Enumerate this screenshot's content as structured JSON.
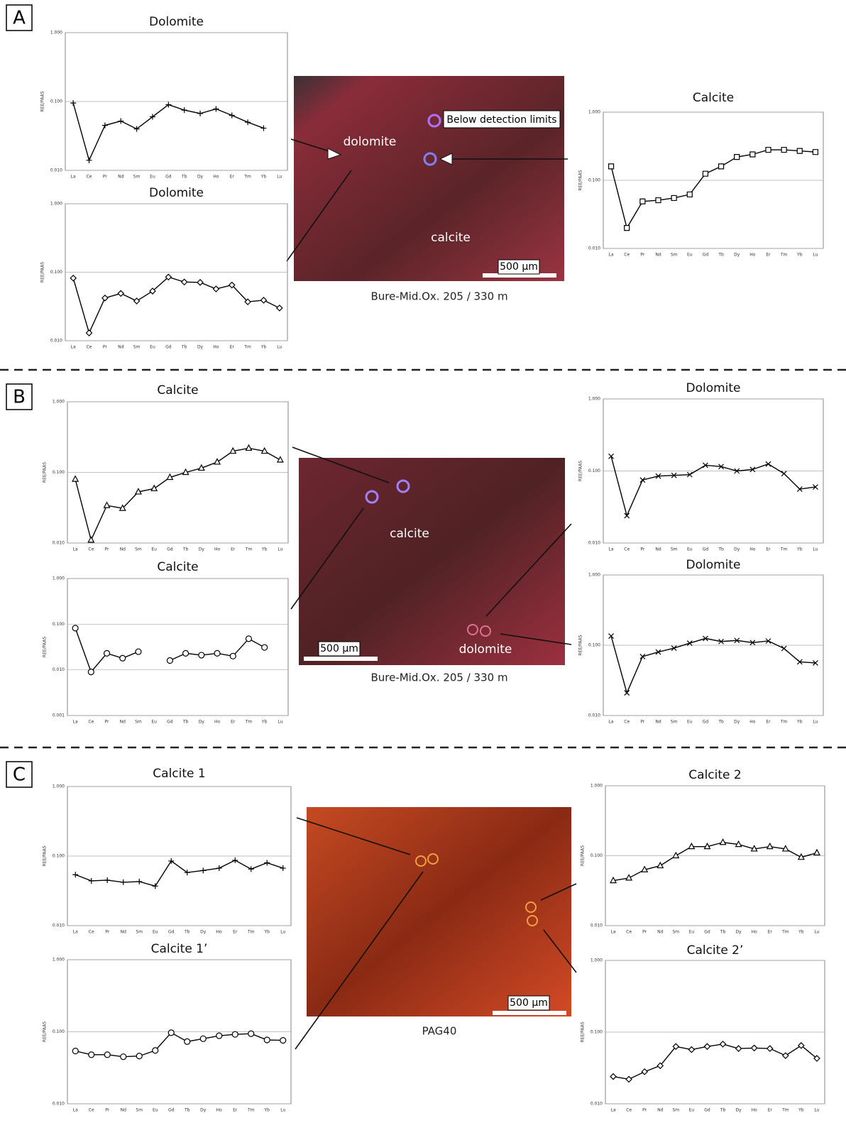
{
  "panels": [
    {
      "letter": "A",
      "labels": [
        "Below detection limits",
        "dolomite",
        "calcite"
      ],
      "scale_bar": "500 µm",
      "caption": "Bure-Mid.Ox. 205 / 330 m"
    },
    {
      "letter": "B",
      "labels": [
        "calcite",
        "dolomite"
      ],
      "scale_bar": "500 µm",
      "caption": "Bure-Mid.Ox. 205 / 330 m"
    },
    {
      "letter": "C",
      "labels": [],
      "scale_bar": "500 µm",
      "caption": "PAG40"
    }
  ],
  "chart_data": [
    {
      "type": "line",
      "title": "Dolomite",
      "y_label": "REE/PAAS",
      "log_scale": true,
      "marker": "plus",
      "color": "#000000",
      "categories": [
        "La",
        "Ce",
        "Pr",
        "Nd",
        "Sm",
        "Eu",
        "Gd",
        "Tb",
        "Dy",
        "Ho",
        "Er",
        "Tm",
        "Yb",
        "Lu"
      ],
      "values": [
        0.095,
        0.014,
        0.045,
        0.052,
        0.04,
        0.06,
        0.09,
        0.075,
        0.067,
        0.078,
        0.063,
        0.05,
        0.041,
        null
      ],
      "ylim": [
        0.01,
        1
      ],
      "yticks": [
        {
          "value": 1,
          "label": "1.000"
        },
        {
          "value": 0.1,
          "label": "0.100"
        },
        {
          "value": 0.01,
          "label": "0.010"
        }
      ],
      "grid": true
    },
    {
      "type": "line",
      "title": "Dolomite",
      "y_label": "REE/PAAS",
      "log_scale": true,
      "marker": "diamond",
      "color": "#000000",
      "categories": [
        "La",
        "Ce",
        "Pr",
        "Nd",
        "Sm",
        "Eu",
        "Gd",
        "Tb",
        "Dy",
        "Ho",
        "Er",
        "Tm",
        "Yb",
        "Lu"
      ],
      "values": [
        0.082,
        0.013,
        0.042,
        0.049,
        0.038,
        0.053,
        0.085,
        0.072,
        0.071,
        0.057,
        0.065,
        0.037,
        0.039,
        0.03
      ],
      "ylim": [
        0.01,
        1
      ],
      "yticks": [
        {
          "value": 1,
          "label": "1.000"
        },
        {
          "value": 0.1,
          "label": "0.100"
        },
        {
          "value": 0.01,
          "label": "0.010"
        }
      ],
      "grid": true
    },
    {
      "type": "line",
      "title": "Calcite",
      "y_label": "REE/PAAS",
      "log_scale": true,
      "marker": "square",
      "color": "#000000",
      "categories": [
        "La",
        "Ce",
        "Pr",
        "Nd",
        "Sm",
        "Eu",
        "Gd",
        "Tb",
        "Dy",
        "Ho",
        "Er",
        "Tm",
        "Yb",
        "Lu"
      ],
      "values": [
        0.16,
        0.02,
        0.049,
        0.051,
        0.055,
        0.062,
        0.125,
        0.16,
        0.22,
        0.24,
        0.28,
        0.28,
        0.27,
        0.26
      ],
      "ylim": [
        0.01,
        1
      ],
      "yticks": [
        {
          "value": 1,
          "label": "1.000"
        },
        {
          "value": 0.1,
          "label": "0.100"
        },
        {
          "value": 0.01,
          "label": "0.010"
        }
      ],
      "grid": true
    },
    {
      "type": "line",
      "title": "Calcite",
      "y_label": "REE/PAAS",
      "log_scale": true,
      "marker": "triangle",
      "color": "#000000",
      "categories": [
        "La",
        "Ce",
        "Pr",
        "Nd",
        "Sm",
        "Eu",
        "Gd",
        "Tb",
        "Dy",
        "Ho",
        "Er",
        "Tm",
        "Yb",
        "Lu"
      ],
      "values": [
        0.08,
        0.011,
        0.034,
        0.031,
        0.053,
        0.059,
        0.085,
        0.1,
        0.115,
        0.14,
        0.2,
        0.22,
        0.2,
        0.15
      ],
      "ylim": [
        0.01,
        1
      ],
      "yticks": [
        {
          "value": 1,
          "label": "1.000"
        },
        {
          "value": 0.1,
          "label": "0.100"
        },
        {
          "value": 0.01,
          "label": "0.010"
        }
      ],
      "grid": true
    },
    {
      "type": "line",
      "title": "Calcite",
      "y_label": "REE/PAAS",
      "log_scale": true,
      "marker": "circle",
      "color": "#000000",
      "categories": [
        "La",
        "Ce",
        "Pr",
        "Nd",
        "Sm",
        "Eu",
        "Gd",
        "Tb",
        "Dy",
        "Ho",
        "Er",
        "Tm",
        "Yb",
        "Lu"
      ],
      "values": [
        0.082,
        0.009,
        0.023,
        0.018,
        0.025,
        null,
        0.016,
        0.023,
        0.021,
        0.023,
        0.02,
        0.048,
        0.031,
        null
      ],
      "ylim": [
        0.001,
        1
      ],
      "yticks": [
        {
          "value": 1,
          "label": "1.000"
        },
        {
          "value": 0.1,
          "label": "0.100"
        },
        {
          "value": 0.01,
          "label": "0.010"
        },
        {
          "value": 0.001,
          "label": "0.001"
        }
      ],
      "grid": true
    },
    {
      "type": "line",
      "title": "Dolomite",
      "y_label": "REE/PAAS",
      "log_scale": true,
      "marker": "x",
      "color": "#000000",
      "categories": [
        "La",
        "Ce",
        "Pr",
        "Nd",
        "Sm",
        "Eu",
        "Gd",
        "Tb",
        "Dy",
        "Ho",
        "Er",
        "Tm",
        "Yb",
        "Lu"
      ],
      "values": [
        0.16,
        0.024,
        0.075,
        0.085,
        0.087,
        0.089,
        0.12,
        0.115,
        0.1,
        0.105,
        0.125,
        0.092,
        0.056,
        0.06
      ],
      "ylim": [
        0.01,
        1
      ],
      "yticks": [
        {
          "value": 1,
          "label": "1.000"
        },
        {
          "value": 0.1,
          "label": "0.100"
        },
        {
          "value": 0.01,
          "label": "0.010"
        }
      ],
      "grid": true
    },
    {
      "type": "line",
      "title": "Dolomite",
      "y_label": "REE/PAAS",
      "log_scale": true,
      "marker": "x",
      "color": "#000000",
      "categories": [
        "La",
        "Ce",
        "Pr",
        "Nd",
        "Sm",
        "Eu",
        "Gd",
        "Tb",
        "Dy",
        "Ho",
        "Er",
        "Tm",
        "Yb",
        "Lu"
      ],
      "values": [
        0.135,
        0.021,
        0.069,
        0.08,
        0.091,
        0.107,
        0.125,
        0.113,
        0.117,
        0.109,
        0.115,
        0.09,
        0.058,
        0.056
      ],
      "ylim": [
        0.01,
        1
      ],
      "yticks": [
        {
          "value": 1,
          "label": "1.000"
        },
        {
          "value": 0.1,
          "label": "0.100"
        },
        {
          "value": 0.01,
          "label": "0.010"
        }
      ],
      "grid": true
    },
    {
      "type": "line",
      "title": "Calcite 1",
      "y_label": "REE/PAAS",
      "log_scale": true,
      "marker": "plus",
      "color": "#000000",
      "categories": [
        "La",
        "Ce",
        "Pr",
        "Nd",
        "Sm",
        "Eu",
        "Gd",
        "Tb",
        "Dy",
        "Ho",
        "Er",
        "Tm",
        "Yb",
        "Lu"
      ],
      "values": [
        0.054,
        0.044,
        0.045,
        0.042,
        0.043,
        0.037,
        0.085,
        0.058,
        0.062,
        0.067,
        0.087,
        0.065,
        0.08,
        0.067
      ],
      "ylim": [
        0.01,
        1
      ],
      "yticks": [
        {
          "value": 1,
          "label": "1.000"
        },
        {
          "value": 0.1,
          "label": "0.100"
        },
        {
          "value": 0.01,
          "label": "0.010"
        }
      ],
      "grid": true
    },
    {
      "type": "line",
      "title": "Calcite 1’",
      "y_label": "REE/PAAS",
      "log_scale": true,
      "marker": "circle",
      "color": "#000000",
      "categories": [
        "La",
        "Ce",
        "Pr",
        "Nd",
        "Sm",
        "Eu",
        "Gd",
        "Tb",
        "Dy",
        "Ho",
        "Er",
        "Tm",
        "Yb",
        "Lu"
      ],
      "values": [
        0.054,
        0.048,
        0.048,
        0.045,
        0.046,
        0.055,
        0.097,
        0.073,
        0.08,
        0.088,
        0.092,
        0.094,
        0.077,
        0.076
      ],
      "ylim": [
        0.01,
        1
      ],
      "yticks": [
        {
          "value": 1,
          "label": "1.000"
        },
        {
          "value": 0.1,
          "label": "0.100"
        },
        {
          "value": 0.01,
          "label": "0.010"
        }
      ],
      "grid": true
    },
    {
      "type": "line",
      "title": "Calcite 2",
      "y_label": "REE/PAAS",
      "log_scale": true,
      "marker": "triangle",
      "color": "#000000",
      "categories": [
        "La",
        "Ce",
        "Pr",
        "Nd",
        "Sm",
        "Eu",
        "Gd",
        "Tb",
        "Dy",
        "Ho",
        "Er",
        "Tm",
        "Yb",
        "Lu"
      ],
      "values": [
        0.044,
        0.048,
        0.063,
        0.072,
        0.1,
        0.135,
        0.135,
        0.155,
        0.145,
        0.125,
        0.135,
        0.125,
        0.095,
        0.11
      ],
      "ylim": [
        0.01,
        1
      ],
      "yticks": [
        {
          "value": 1,
          "label": "1.000"
        },
        {
          "value": 0.1,
          "label": "0.100"
        },
        {
          "value": 0.01,
          "label": "0.010"
        }
      ],
      "grid": true
    },
    {
      "type": "line",
      "title": "Calcite 2’",
      "y_label": "REE/PAAS",
      "log_scale": true,
      "marker": "diamond",
      "color": "#000000",
      "categories": [
        "La",
        "Ce",
        "Pr",
        "Nd",
        "Sm",
        "Eu",
        "Gd",
        "Tb",
        "Dy",
        "Ho",
        "Er",
        "Tm",
        "Yb",
        "Lu"
      ],
      "values": [
        0.024,
        0.022,
        0.028,
        0.034,
        0.063,
        0.057,
        0.063,
        0.068,
        0.059,
        0.06,
        0.059,
        0.047,
        0.065,
        0.043
      ],
      "ylim": [
        0.01,
        1
      ],
      "yticks": [
        {
          "value": 1,
          "label": "1.000"
        },
        {
          "value": 0.1,
          "label": "0.100"
        },
        {
          "value": 0.01,
          "label": "0.010"
        }
      ],
      "grid": true
    }
  ]
}
